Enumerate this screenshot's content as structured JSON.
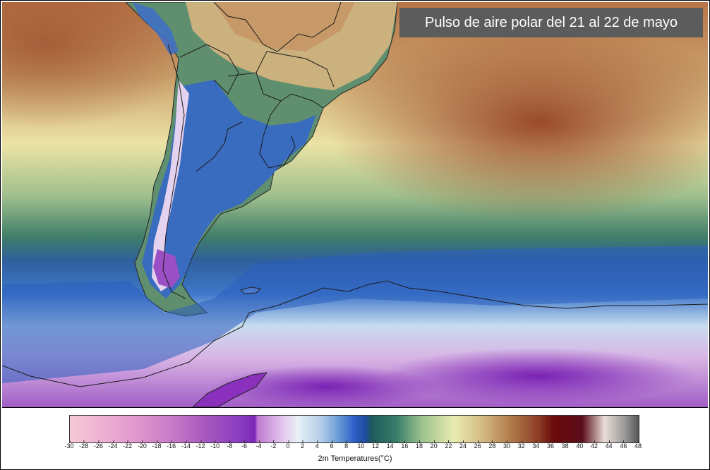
{
  "title": "Pulso de aire polar del 21 al 22 de mayo",
  "colorbar": {
    "label": "2m Temperatures(°C)",
    "min": -30,
    "max": 48,
    "ticks": [
      "-30",
      "-28",
      "-26",
      "-24",
      "-22",
      "-20",
      "-18",
      "-16",
      "-14",
      "-12",
      "-10",
      "-8",
      "-6",
      "-4",
      "-2",
      "0",
      "2",
      "4",
      "6",
      "8",
      "10",
      "12",
      "14",
      "16",
      "18",
      "20",
      "22",
      "24",
      "26",
      "28",
      "30",
      "32",
      "34",
      "36",
      "38",
      "40",
      "42",
      "44",
      "46",
      "48"
    ]
  },
  "colors": {
    "warm_land": "#a5623b",
    "warm_ocean": "#b87a52",
    "mild": "#e8e4ad",
    "temperate": "#3c7b63",
    "cold": "#2f5fbf",
    "very_cold": "#c9dbee",
    "polar": "#8d3fbf"
  }
}
